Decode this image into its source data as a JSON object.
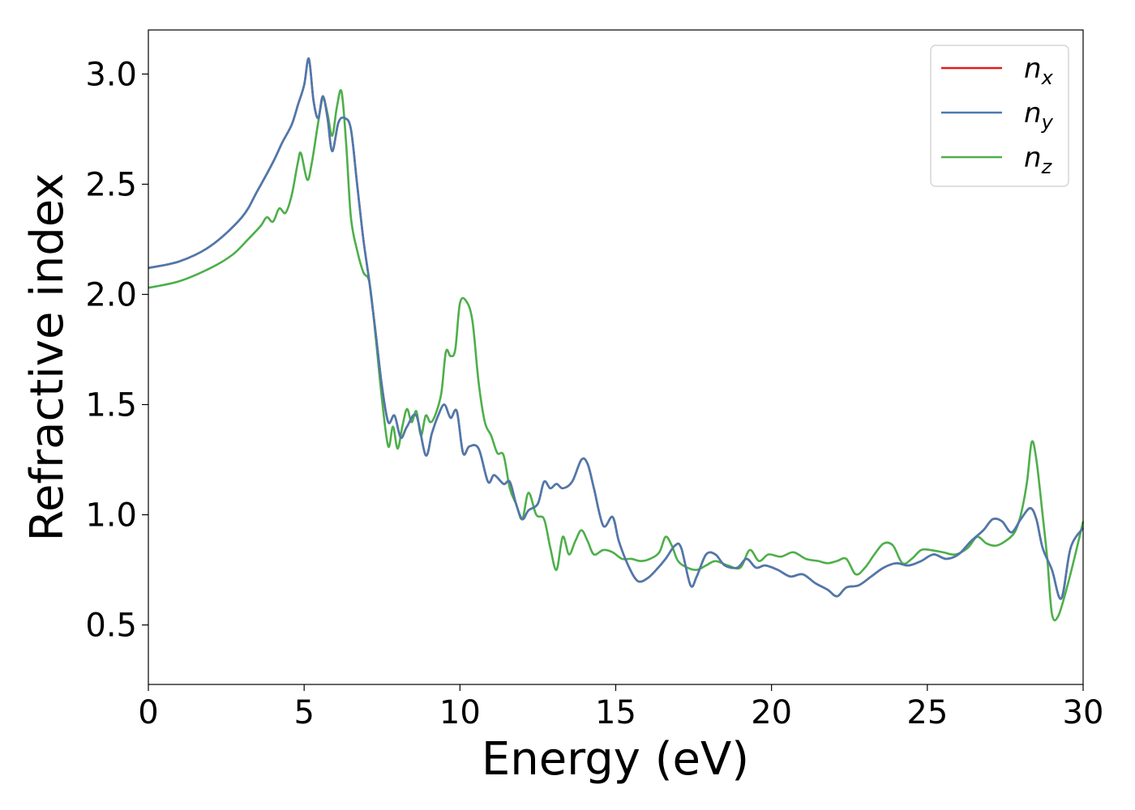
{
  "chart_data": {
    "type": "line",
    "xlabel": "Energy (eV)",
    "ylabel": "Refractive index",
    "xlim": [
      0,
      30
    ],
    "ylim": [
      0.23,
      3.2
    ],
    "xticks": [
      0,
      5,
      10,
      15,
      20,
      25,
      30
    ],
    "xtick_labels": [
      "0",
      "5",
      "10",
      "15",
      "20",
      "25",
      "30"
    ],
    "yticks": [
      0.5,
      1.0,
      1.5,
      2.0,
      2.5,
      3.0
    ],
    "ytick_labels": [
      "0.5",
      "1.0",
      "1.5",
      "2.0",
      "2.5",
      "3.0"
    ],
    "grid": false,
    "legend": "top-right",
    "series": [
      {
        "name": "n_x",
        "label_base": "n",
        "label_sub": "x",
        "color": "#e41a1c",
        "x": [
          0,
          1,
          2,
          3,
          3.5,
          4,
          4.3,
          4.6,
          4.8,
          5.0,
          5.15,
          5.3,
          5.45,
          5.6,
          5.75,
          5.9,
          6.1,
          6.3,
          6.5,
          6.7,
          6.9,
          7.1,
          7.3,
          7.5,
          7.7,
          7.9,
          8.1,
          8.3,
          8.6,
          8.9,
          9.1,
          9.3,
          9.5,
          9.7,
          9.9,
          10.1,
          10.3,
          10.6,
          10.9,
          11.1,
          11.4,
          11.6,
          11.8,
          12.0,
          12.2,
          12.5,
          12.7,
          12.9,
          13.1,
          13.3,
          13.6,
          13.9,
          14.1,
          14.3,
          14.6,
          14.9,
          15.1,
          15.4,
          15.7,
          16.0,
          16.3,
          16.6,
          16.9,
          17.1,
          17.4,
          17.6,
          17.9,
          18.2,
          18.5,
          18.9,
          19.2,
          19.5,
          19.8,
          20.2,
          20.6,
          21.0,
          21.4,
          21.8,
          22.1,
          22.4,
          22.8,
          23.2,
          23.6,
          24.0,
          24.4,
          24.8,
          25.2,
          25.6,
          26.0,
          26.4,
          26.8,
          27.1,
          27.4,
          27.7,
          28.0,
          28.3,
          28.5,
          28.7,
          29.0,
          29.3,
          29.6,
          30
        ],
        "y": [
          2.12,
          2.15,
          2.22,
          2.35,
          2.47,
          2.6,
          2.69,
          2.77,
          2.86,
          2.95,
          3.07,
          2.88,
          2.8,
          2.9,
          2.8,
          2.65,
          2.78,
          2.8,
          2.75,
          2.5,
          2.25,
          2.05,
          1.82,
          1.58,
          1.42,
          1.45,
          1.35,
          1.4,
          1.45,
          1.27,
          1.37,
          1.45,
          1.5,
          1.44,
          1.47,
          1.28,
          1.31,
          1.3,
          1.15,
          1.18,
          1.14,
          1.15,
          1.05,
          0.98,
          1.02,
          1.05,
          1.15,
          1.12,
          1.14,
          1.12,
          1.15,
          1.25,
          1.23,
          1.12,
          0.95,
          0.99,
          0.88,
          0.77,
          0.7,
          0.71,
          0.75,
          0.8,
          0.86,
          0.85,
          0.68,
          0.72,
          0.82,
          0.82,
          0.77,
          0.76,
          0.8,
          0.76,
          0.77,
          0.75,
          0.72,
          0.73,
          0.69,
          0.66,
          0.63,
          0.67,
          0.68,
          0.72,
          0.76,
          0.78,
          0.77,
          0.79,
          0.82,
          0.8,
          0.82,
          0.88,
          0.93,
          0.98,
          0.97,
          0.92,
          0.98,
          1.03,
          0.98,
          0.85,
          0.75,
          0.62,
          0.85,
          0.94
        ]
      },
      {
        "name": "n_y",
        "label_base": "n",
        "label_sub": "y",
        "color": "#4a7aaf",
        "x": [
          0,
          1,
          2,
          3,
          3.5,
          4,
          4.3,
          4.6,
          4.8,
          5.0,
          5.15,
          5.3,
          5.45,
          5.6,
          5.75,
          5.9,
          6.1,
          6.3,
          6.5,
          6.7,
          6.9,
          7.1,
          7.3,
          7.5,
          7.7,
          7.9,
          8.1,
          8.3,
          8.6,
          8.9,
          9.1,
          9.3,
          9.5,
          9.7,
          9.9,
          10.1,
          10.3,
          10.6,
          10.9,
          11.1,
          11.4,
          11.6,
          11.8,
          12.0,
          12.2,
          12.5,
          12.7,
          12.9,
          13.1,
          13.3,
          13.6,
          13.9,
          14.1,
          14.3,
          14.6,
          14.9,
          15.1,
          15.4,
          15.7,
          16.0,
          16.3,
          16.6,
          16.9,
          17.1,
          17.4,
          17.6,
          17.9,
          18.2,
          18.5,
          18.9,
          19.2,
          19.5,
          19.8,
          20.2,
          20.6,
          21.0,
          21.4,
          21.8,
          22.1,
          22.4,
          22.8,
          23.2,
          23.6,
          24.0,
          24.4,
          24.8,
          25.2,
          25.6,
          26.0,
          26.4,
          26.8,
          27.1,
          27.4,
          27.7,
          28.0,
          28.3,
          28.5,
          28.7,
          29.0,
          29.3,
          29.6,
          30
        ],
        "y": [
          2.12,
          2.15,
          2.22,
          2.35,
          2.47,
          2.6,
          2.69,
          2.77,
          2.86,
          2.95,
          3.07,
          2.88,
          2.8,
          2.9,
          2.8,
          2.65,
          2.78,
          2.8,
          2.75,
          2.5,
          2.25,
          2.05,
          1.82,
          1.58,
          1.42,
          1.45,
          1.35,
          1.4,
          1.45,
          1.27,
          1.37,
          1.45,
          1.5,
          1.44,
          1.47,
          1.28,
          1.31,
          1.3,
          1.15,
          1.18,
          1.14,
          1.15,
          1.05,
          0.98,
          1.02,
          1.05,
          1.15,
          1.12,
          1.14,
          1.12,
          1.15,
          1.25,
          1.23,
          1.12,
          0.95,
          0.99,
          0.88,
          0.77,
          0.7,
          0.71,
          0.75,
          0.8,
          0.86,
          0.85,
          0.68,
          0.72,
          0.82,
          0.82,
          0.77,
          0.76,
          0.8,
          0.76,
          0.77,
          0.75,
          0.72,
          0.73,
          0.69,
          0.66,
          0.63,
          0.67,
          0.68,
          0.72,
          0.76,
          0.78,
          0.77,
          0.79,
          0.82,
          0.8,
          0.82,
          0.88,
          0.93,
          0.98,
          0.97,
          0.92,
          0.98,
          1.03,
          0.98,
          0.85,
          0.75,
          0.62,
          0.85,
          0.94
        ]
      },
      {
        "name": "n_z",
        "label_base": "n",
        "label_sub": "z",
        "color": "#4daf4a",
        "x": [
          0,
          1,
          2,
          2.7,
          3.2,
          3.6,
          3.8,
          4.0,
          4.2,
          4.4,
          4.6,
          4.8,
          4.9,
          5.1,
          5.25,
          5.45,
          5.6,
          5.75,
          5.9,
          6.05,
          6.2,
          6.35,
          6.5,
          6.7,
          6.9,
          7.1,
          7.3,
          7.5,
          7.7,
          7.85,
          8.0,
          8.15,
          8.3,
          8.45,
          8.6,
          8.75,
          8.9,
          9.05,
          9.2,
          9.4,
          9.55,
          9.7,
          9.85,
          10.0,
          10.2,
          10.4,
          10.6,
          10.8,
          11.0,
          11.2,
          11.4,
          11.6,
          11.8,
          12.0,
          12.2,
          12.45,
          12.7,
          12.9,
          13.1,
          13.3,
          13.5,
          13.7,
          13.9,
          14.1,
          14.3,
          14.6,
          14.9,
          15.2,
          15.5,
          15.8,
          16.1,
          16.4,
          16.6,
          16.8,
          17.0,
          17.3,
          17.6,
          17.9,
          18.2,
          18.6,
          19.0,
          19.3,
          19.6,
          19.9,
          20.3,
          20.7,
          21.1,
          21.5,
          21.8,
          22.1,
          22.4,
          22.7,
          23.0,
          23.3,
          23.6,
          23.9,
          24.2,
          24.5,
          24.8,
          25.1,
          25.5,
          25.9,
          26.3,
          26.6,
          26.9,
          27.2,
          27.5,
          27.8,
          28.0,
          28.2,
          28.35,
          28.5,
          28.7,
          28.85,
          29.0,
          29.2,
          29.5,
          29.8,
          30
        ],
        "y": [
          2.03,
          2.06,
          2.12,
          2.18,
          2.25,
          2.31,
          2.35,
          2.33,
          2.39,
          2.37,
          2.45,
          2.6,
          2.64,
          2.52,
          2.6,
          2.78,
          2.89,
          2.82,
          2.72,
          2.85,
          2.92,
          2.68,
          2.35,
          2.2,
          2.1,
          2.05,
          1.8,
          1.52,
          1.31,
          1.4,
          1.3,
          1.4,
          1.48,
          1.42,
          1.47,
          1.36,
          1.45,
          1.42,
          1.45,
          1.55,
          1.74,
          1.72,
          1.75,
          1.96,
          1.97,
          1.88,
          1.6,
          1.42,
          1.36,
          1.28,
          1.27,
          1.12,
          1.05,
          0.98,
          1.1,
          1.0,
          0.98,
          0.85,
          0.75,
          0.9,
          0.82,
          0.88,
          0.93,
          0.88,
          0.82,
          0.84,
          0.83,
          0.8,
          0.8,
          0.79,
          0.8,
          0.83,
          0.9,
          0.86,
          0.79,
          0.76,
          0.75,
          0.77,
          0.79,
          0.77,
          0.76,
          0.84,
          0.79,
          0.82,
          0.81,
          0.83,
          0.8,
          0.79,
          0.78,
          0.79,
          0.8,
          0.73,
          0.76,
          0.82,
          0.87,
          0.86,
          0.78,
          0.8,
          0.84,
          0.84,
          0.83,
          0.82,
          0.85,
          0.9,
          0.87,
          0.86,
          0.88,
          0.92,
          1.0,
          1.15,
          1.33,
          1.25,
          1.0,
          0.8,
          0.55,
          0.54,
          0.68,
          0.85,
          0.97
        ]
      }
    ]
  }
}
